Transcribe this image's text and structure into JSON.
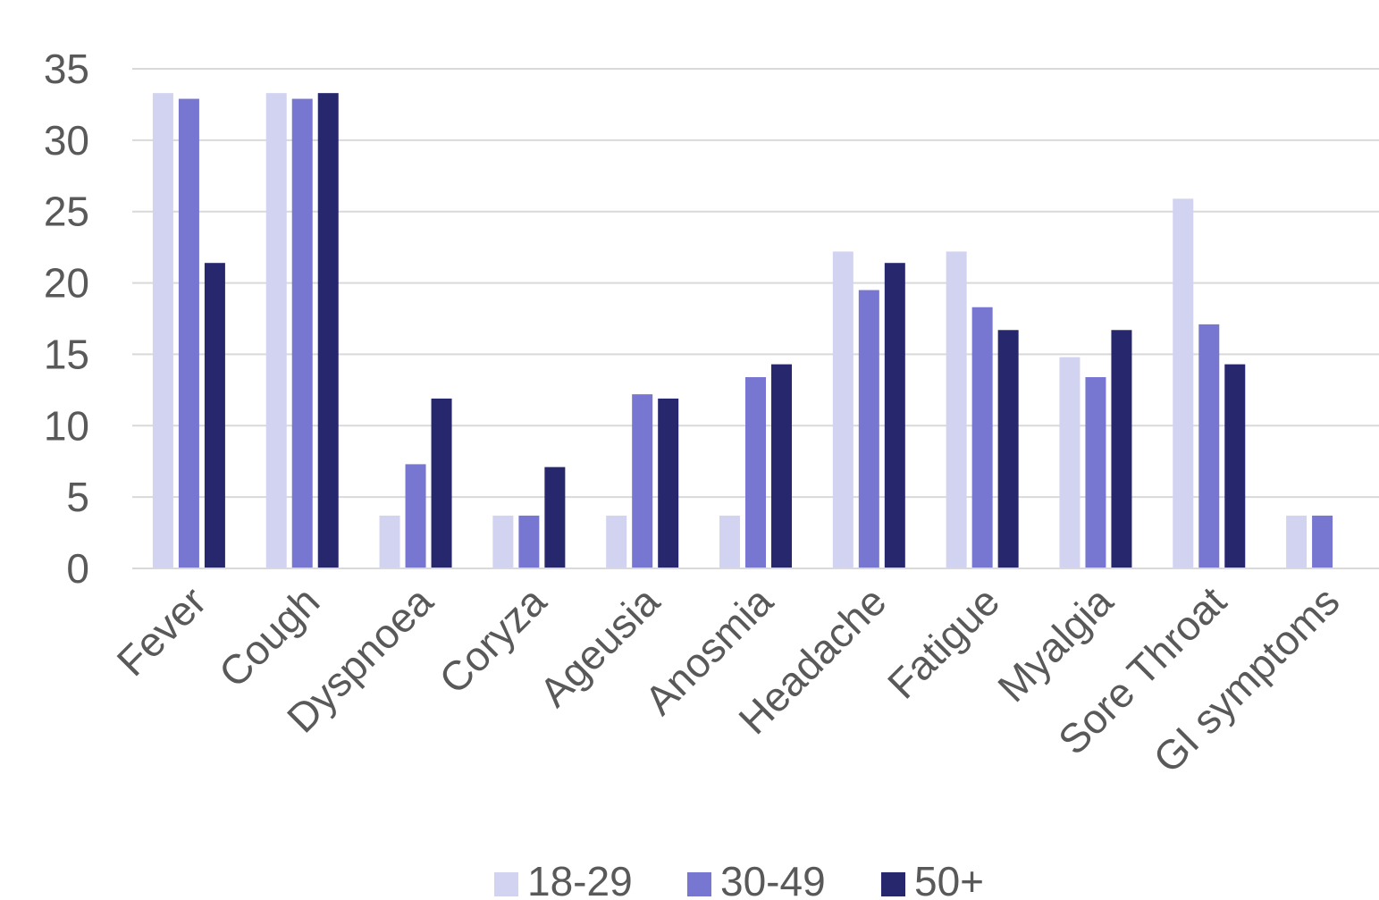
{
  "chart_data": {
    "type": "bar",
    "title": "",
    "xlabel": "",
    "ylabel": "",
    "ylim": [
      0,
      35
    ],
    "yticks": [
      0,
      5,
      10,
      15,
      20,
      25,
      30,
      35
    ],
    "grid": true,
    "legend_position": "bottom",
    "categories": [
      "Fever",
      "Cough",
      "Dyspnoea",
      "Coryza",
      "Ageusia",
      "Anosmia",
      "Headache",
      "Fatigue",
      "Myalgia",
      "Sore Throat",
      "GI symptoms"
    ],
    "series": [
      {
        "name": "18-29",
        "color": "#d2d3f0",
        "values": [
          33.3,
          33.3,
          3.7,
          3.7,
          3.7,
          3.7,
          22.2,
          22.2,
          14.8,
          25.9,
          3.7
        ]
      },
      {
        "name": "30-49",
        "color": "#7777d1",
        "values": [
          32.9,
          32.9,
          7.3,
          3.7,
          12.2,
          13.4,
          19.5,
          18.3,
          13.4,
          17.1,
          3.7
        ]
      },
      {
        "name": "50+",
        "color": "#27276e",
        "values": [
          21.4,
          33.3,
          11.9,
          7.1,
          11.9,
          14.3,
          21.4,
          16.7,
          16.7,
          14.3,
          0
        ]
      }
    ]
  }
}
